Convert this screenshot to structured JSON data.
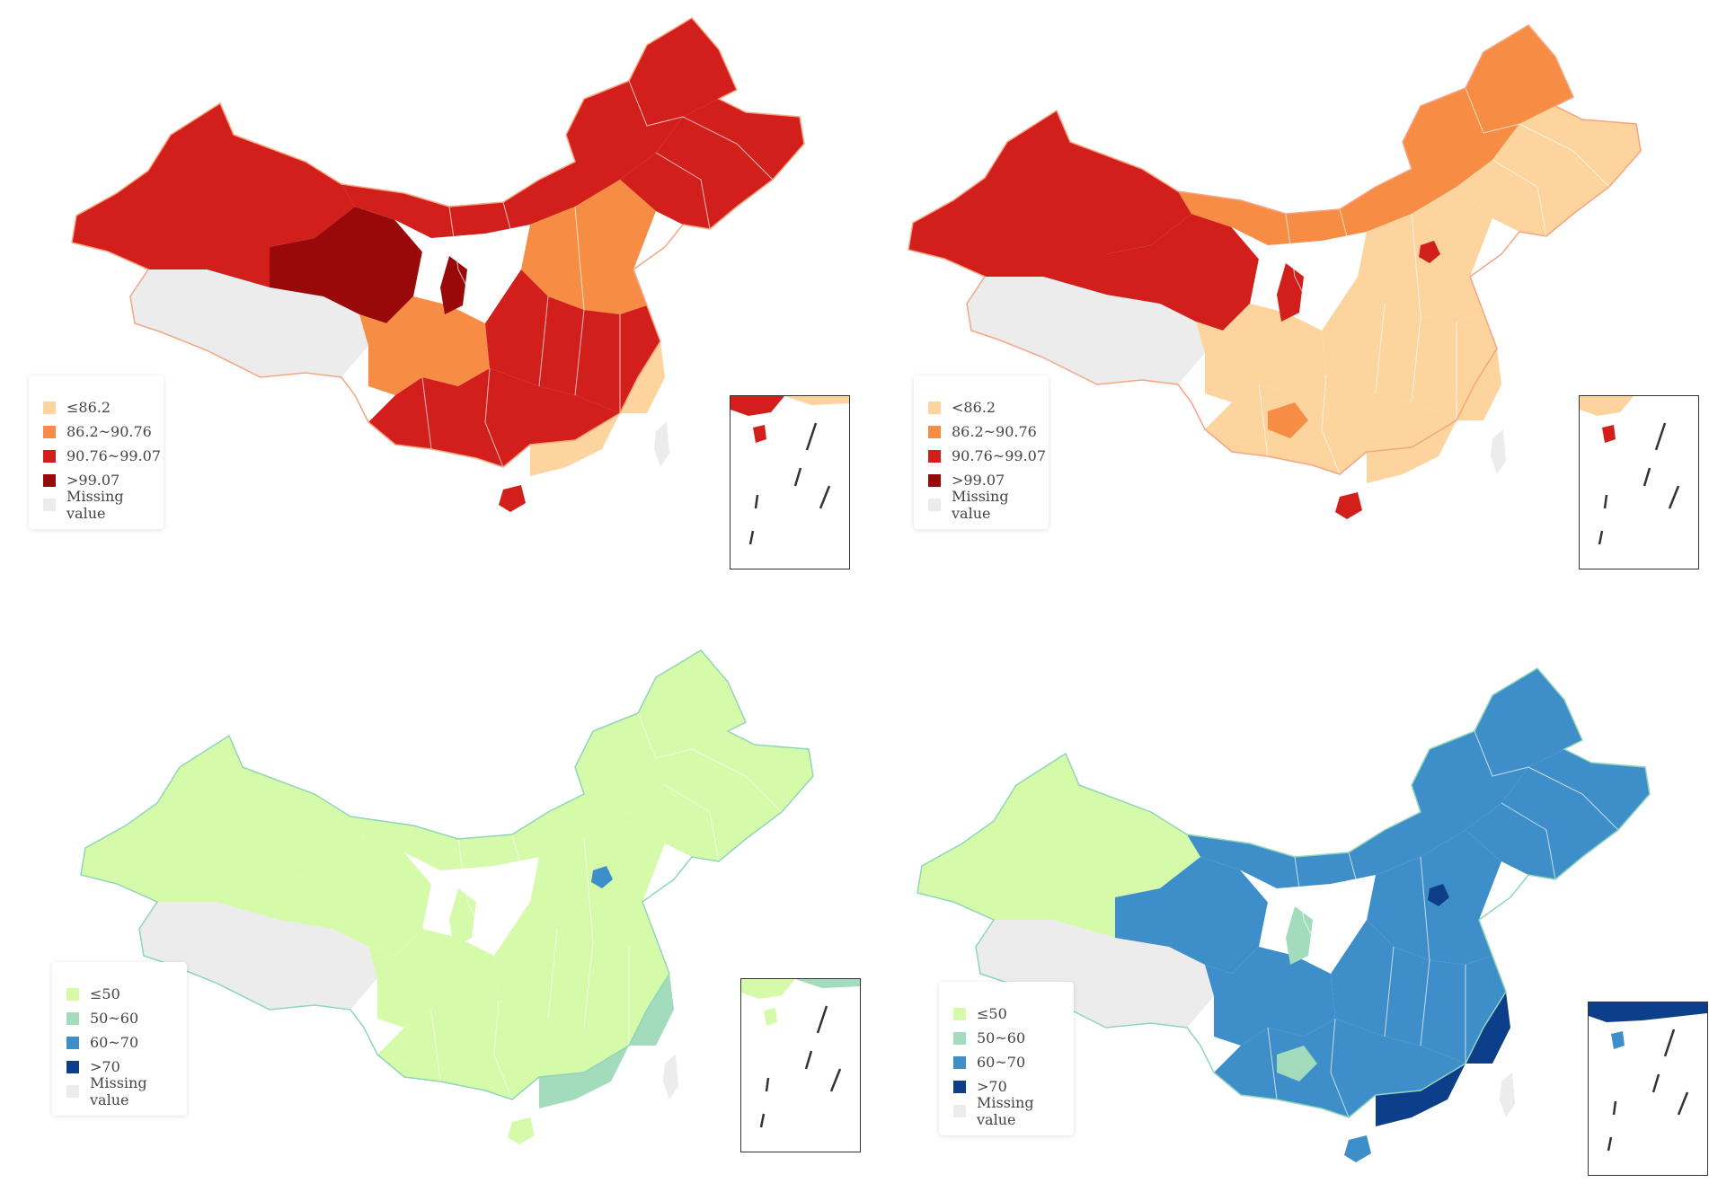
{
  "maps": [
    {
      "legend": [
        "≤86.2",
        "86.2~90.76",
        "90.76~99.07",
        ">99.07",
        "Missing value"
      ],
      "colors": {
        "c1": "#fdd49e",
        "c2": "#f78d45",
        "c3": "#d21f1b",
        "c4": "#9a0909",
        "missing": "#ececec"
      }
    },
    {
      "legend": [
        "<86.2",
        "86.2~90.76",
        "90.76~99.07",
        ">99.07",
        "Missing value"
      ],
      "colors": {
        "c1": "#fdd49e",
        "c2": "#f78d45",
        "c3": "#d21f1b",
        "c4": "#9a0909",
        "missing": "#ececec"
      }
    },
    {
      "legend": [
        "≤50",
        "50~60",
        "60~70",
        ">70",
        "Missing value"
      ],
      "colors": {
        "c1": "#d5fbaa",
        "c2": "#a3dbbd",
        "c3": "#3e8ec9",
        "c4": "#0c3e8a",
        "missing": "#ececec"
      }
    },
    {
      "legend": [
        "≤50",
        "50~60",
        "60~70",
        ">70",
        "Missing value"
      ],
      "colors": {
        "c1": "#d5fbaa",
        "c2": "#a3dbbd",
        "c3": "#3e8ec9",
        "c4": "#0c3e8a",
        "missing": "#ececec"
      }
    }
  ]
}
